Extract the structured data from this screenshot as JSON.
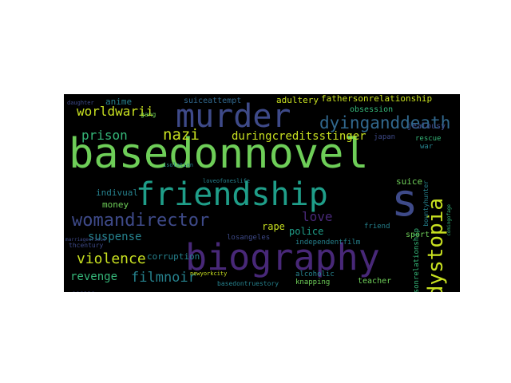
{
  "palette": {
    "purple": "#482878",
    "blue": "#3e4a89",
    "steel": "#31688e",
    "teal": "#26828e",
    "green": "#1f9e89",
    "mint": "#35b779",
    "lime": "#6ece58",
    "yellow": "#c8e020",
    "bright": "#fde725",
    "dim": "#2a2a55"
  },
  "words": {
    "basedonnovel": "basedonnovel",
    "friendship": "friendship",
    "murder": "murder",
    "biography": "biography",
    "womandirector": "womandirector",
    "dystopia": "dystopia",
    "dyinganddeath": "dyinganddeath",
    "worldwarii": "worldwarii",
    "s": "s",
    "nazi": "nazi",
    "prison": "prison",
    "duringcreditsstinger": "duringcreditsstinger",
    "violence": "violence",
    "filmnoir": "filmnoir",
    "revenge": "revenge",
    "suspense": "suspense",
    "love": "love",
    "rape": "rape",
    "police": "police",
    "corruption": "corruption",
    "money": "money",
    "indivual": "indivual",
    "anime": "anime",
    "suiceattempt": "suiceattempt",
    "adultery": "adultery",
    "fathersonrelationship": "fathersonrelationship",
    "obsession": "obsession",
    "jealousy": "jealousy",
    "japan": "japan",
    "rescue": "rescue",
    "war": "war",
    "suice": "suice",
    "sport": "sport",
    "friend": "friend",
    "losangeles": "losangeles",
    "independentfilm": "independentfilm",
    "alcoholic": "alcoholic",
    "knapping": "knapping",
    "teacher": "teacher",
    "basedontruestory": "basedontruestory",
    "newyorkcity": "newyorkcity",
    "escape": "escape",
    "thcentury": "thcentury",
    "gang": "gang",
    "isolation": "isolation",
    "loveofoneslife": "loveofoneslife",
    "mothersonrelationship": "mothersonrelationship",
    "bountyhunter": "bountyhunter",
    "comingofage": "comingofage",
    "daughter": "daughter",
    "marriagecrisis": "marriagecrisis"
  }
}
